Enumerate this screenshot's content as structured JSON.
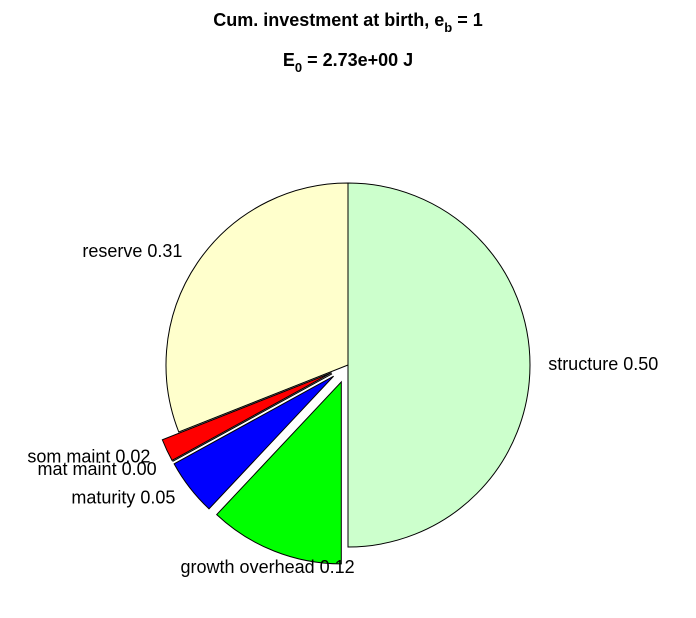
{
  "chart_data": {
    "type": "pie",
    "title": {
      "text": "Cum. investment at birth, e",
      "sub": "b",
      "after": " = 1"
    },
    "subtitle": {
      "text": "E",
      "sub": "0",
      "after": " = 2.73e+00 J"
    },
    "categories": [
      "structure",
      "growth overhead",
      "maturity",
      "mat maint",
      "som maint",
      "reserve"
    ],
    "values": [
      0.5,
      0.12,
      0.05,
      0.0,
      0.02,
      0.31
    ],
    "value_labels": [
      "structure 0.50",
      "growth overhead 0.12",
      "maturity 0.05",
      "mat maint 0.00",
      "som maint 0.02",
      "reserve 0.31"
    ],
    "colors": [
      "#ccffcc",
      "#00ff00",
      "#0000ff",
      "#000000",
      "#ff0000",
      "#ffffcc"
    ],
    "explode": [
      false,
      true,
      true,
      true,
      true,
      false
    ]
  }
}
